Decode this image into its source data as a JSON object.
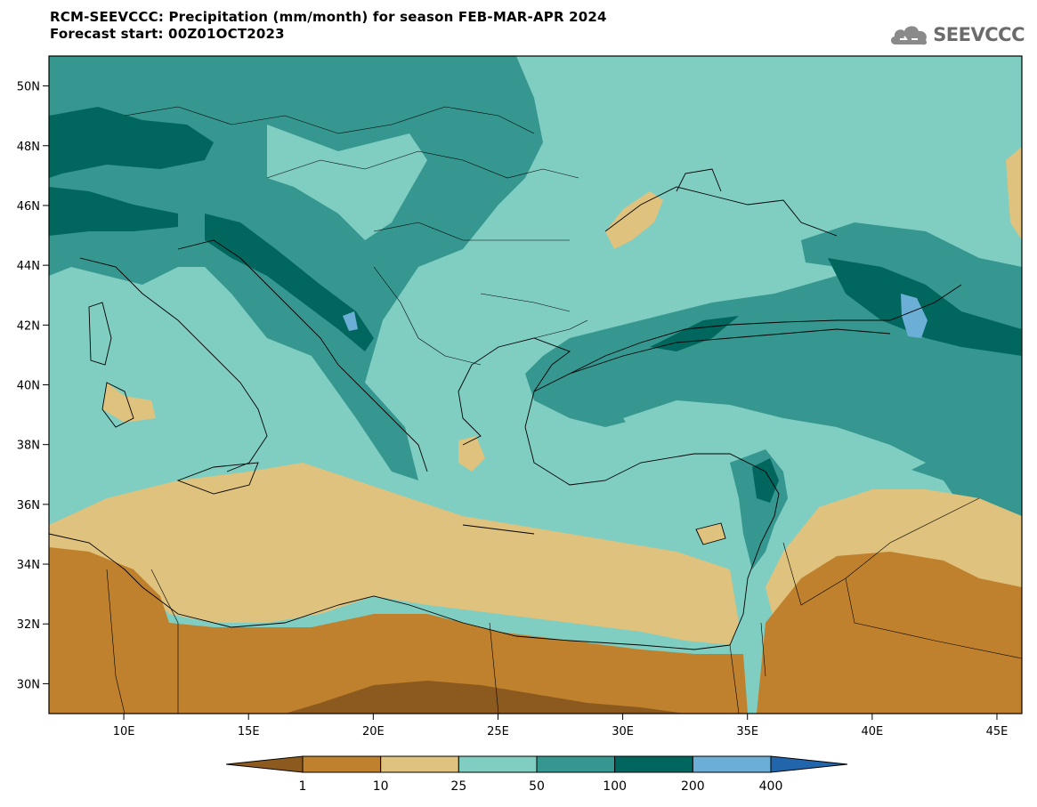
{
  "header": {
    "title_line1": "RCM-SEEVCCC: Precipitation (mm/month) for season FEB-MAR-APR 2024",
    "title_line2": "Forecast start: 00Z01OCT2023"
  },
  "logo": {
    "text": "SEEVCCC",
    "icon": "cloud-icon"
  },
  "map": {
    "extent": {
      "lon": [
        7,
        46
      ],
      "lat": [
        29,
        51
      ]
    },
    "lat_ticks": [
      {
        "value": 30,
        "label": "30N"
      },
      {
        "value": 32,
        "label": "32N"
      },
      {
        "value": 34,
        "label": "34N"
      },
      {
        "value": 36,
        "label": "36N"
      },
      {
        "value": 38,
        "label": "38N"
      },
      {
        "value": 40,
        "label": "40N"
      },
      {
        "value": 42,
        "label": "42N"
      },
      {
        "value": 44,
        "label": "44N"
      },
      {
        "value": 46,
        "label": "46N"
      },
      {
        "value": 48,
        "label": "48N"
      },
      {
        "value": 50,
        "label": "50N"
      }
    ],
    "lon_ticks": [
      {
        "value": 10,
        "label": "10E"
      },
      {
        "value": 15,
        "label": "15E"
      },
      {
        "value": 20,
        "label": "20E"
      },
      {
        "value": 25,
        "label": "25E"
      },
      {
        "value": 30,
        "label": "30E"
      },
      {
        "value": 35,
        "label": "35E"
      },
      {
        "value": 40,
        "label": "40E"
      },
      {
        "value": 45,
        "label": "45E"
      }
    ]
  },
  "colorbar": {
    "levels": [
      {
        "color": "#8c5a1e"
      },
      {
        "color": "#bf812d"
      },
      {
        "color": "#dfc27d"
      },
      {
        "color": "#80cdc1"
      },
      {
        "color": "#35978f"
      },
      {
        "color": "#01665e"
      },
      {
        "color": "#6baed6"
      },
      {
        "color": "#2166ac"
      }
    ],
    "labels": [
      "1",
      "10",
      "25",
      "50",
      "100",
      "200",
      "400"
    ]
  }
}
